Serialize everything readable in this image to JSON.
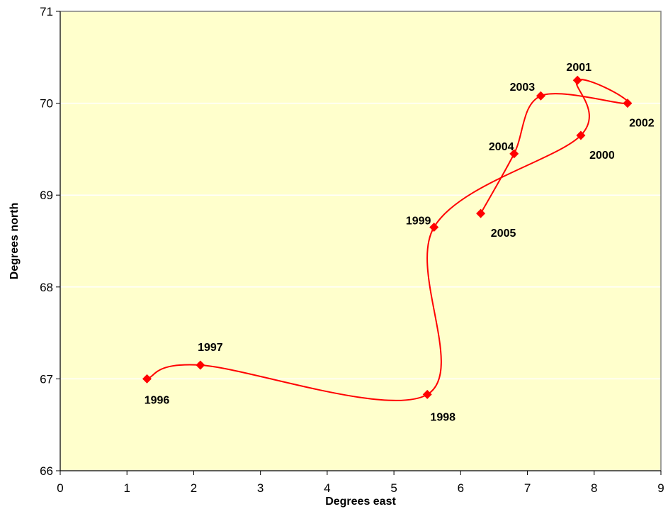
{
  "chart_data": {
    "type": "scatter",
    "title": "",
    "xlabel": "Degrees east",
    "ylabel": "Degrees north",
    "xlim": [
      0,
      9
    ],
    "ylim": [
      66,
      71
    ],
    "xticks": [
      "0",
      "1",
      "2",
      "3",
      "4",
      "5",
      "6",
      "7",
      "8",
      "9"
    ],
    "yticks": [
      "66",
      "67",
      "68",
      "69",
      "70",
      "71"
    ],
    "grid": "horizontal",
    "smoothed_line": true,
    "colors": {
      "plot_bg": "#FFFFCC",
      "series": "#FF0000",
      "grid": "#FFFFFF",
      "frame": "#808080"
    },
    "series": [
      {
        "points": [
          {
            "label": "1996",
            "x": 1.3,
            "y": 67.0
          },
          {
            "label": "1997",
            "x": 2.1,
            "y": 67.15
          },
          {
            "label": "1998",
            "x": 5.5,
            "y": 66.83
          },
          {
            "label": "1999",
            "x": 5.6,
            "y": 68.65
          },
          {
            "label": "2000",
            "x": 7.8,
            "y": 69.65
          },
          {
            "label": "2001",
            "x": 7.75,
            "y": 70.25
          },
          {
            "label": "2002",
            "x": 8.5,
            "y": 70.0
          },
          {
            "label": "2003",
            "x": 7.2,
            "y": 70.08
          },
          {
            "label": "2004",
            "x": 6.8,
            "y": 69.45
          },
          {
            "label": "2005",
            "x": 6.3,
            "y": 68.8
          }
        ]
      }
    ]
  }
}
